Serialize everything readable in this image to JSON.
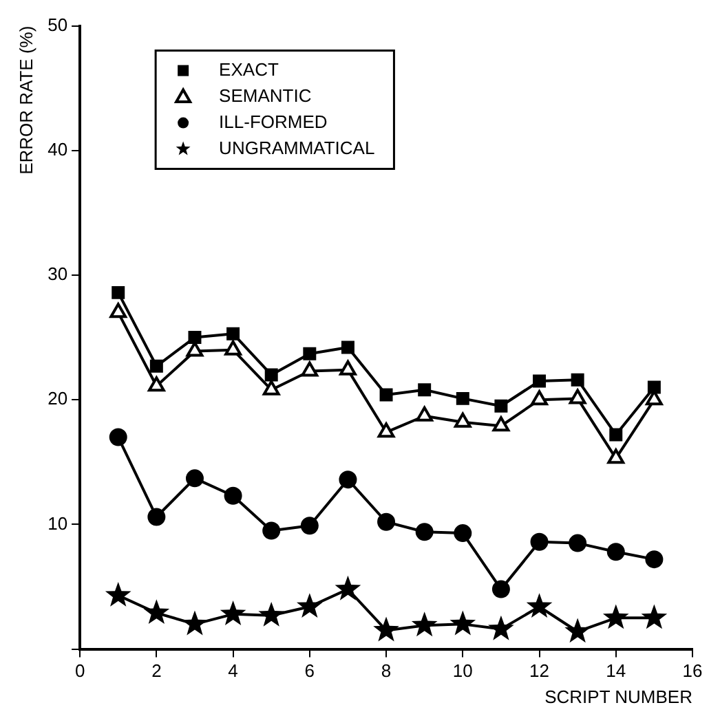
{
  "chart_data": {
    "type": "line",
    "xlabel": "SCRIPT NUMBER",
    "ylabel": "ERROR RATE (%)",
    "x": [
      1,
      2,
      3,
      4,
      5,
      6,
      7,
      8,
      9,
      10,
      11,
      12,
      13,
      14,
      15
    ],
    "xlim": [
      0,
      16
    ],
    "xticks": [
      0,
      2,
      4,
      6,
      8,
      10,
      12,
      14,
      16
    ],
    "ylim": [
      0,
      50
    ],
    "yticks": [
      {
        "value": 0,
        "label": null
      },
      10,
      20,
      30,
      40,
      50
    ],
    "grid": false,
    "legend": "top left",
    "line_style": "solid",
    "series": [
      {
        "name": "EXACT",
        "color": "#000000",
        "marker": "square",
        "values": [
          28.6,
          22.7,
          25.0,
          25.3,
          22.0,
          23.7,
          24.2,
          20.4,
          20.8,
          20.1,
          19.5,
          21.5,
          21.6,
          17.2,
          21.0
        ]
      },
      {
        "name": "SEMANTIC",
        "color": "#000000",
        "marker": "triangle",
        "values": [
          27.0,
          21.1,
          23.9,
          24.0,
          20.8,
          22.3,
          22.4,
          17.4,
          18.7,
          18.2,
          17.9,
          20.0,
          20.1,
          15.3,
          20.0
        ]
      },
      {
        "name": "ILL-FORMED",
        "color": "#000000",
        "marker": "circle",
        "values": [
          17.0,
          10.6,
          13.7,
          12.3,
          9.5,
          9.9,
          13.6,
          10.2,
          9.4,
          9.3,
          4.8,
          8.6,
          8.5,
          7.8,
          7.2
        ]
      },
      {
        "name": "UNGRAMMATICAL",
        "color": "#000000",
        "marker": "star",
        "values": [
          4.3,
          2.9,
          2.0,
          2.8,
          2.7,
          3.4,
          4.8,
          1.5,
          1.9,
          2.0,
          1.6,
          3.4,
          1.4,
          2.5,
          2.5
        ]
      }
    ]
  }
}
